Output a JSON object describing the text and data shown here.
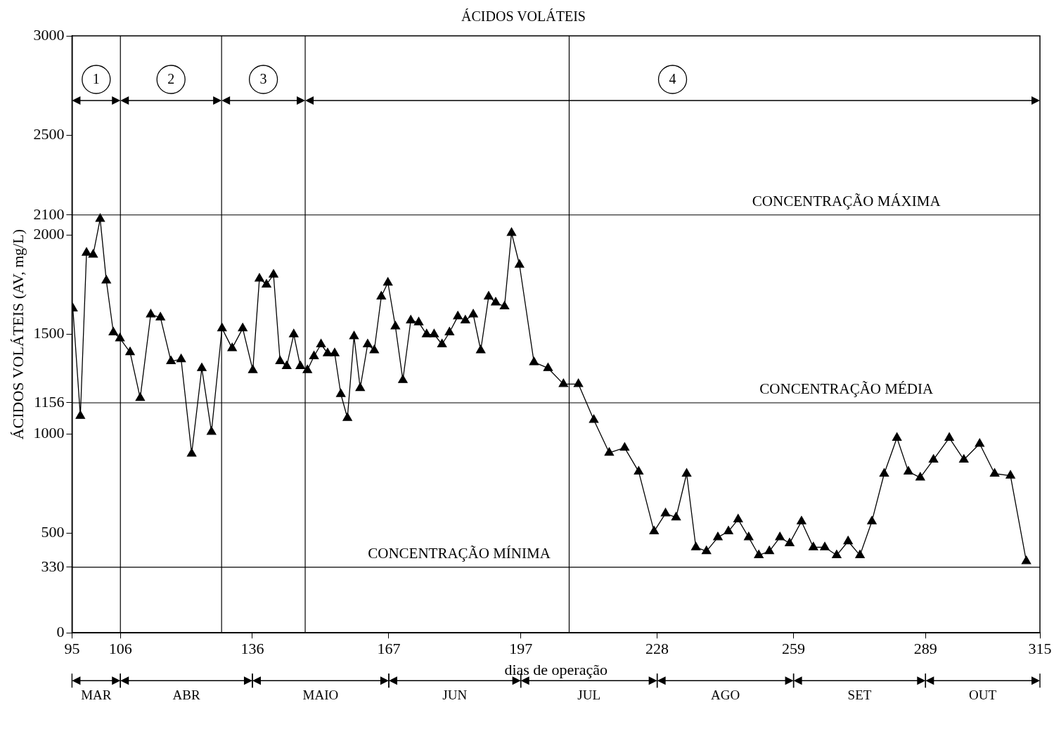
{
  "chart_data": {
    "type": "line",
    "title": "ÁCIDOS VOLÁTEIS",
    "xlabel": "dias de operação",
    "ylabel": "ÁCIDOS VOLÁTEIS (AV, mg/L)",
    "x": [
      95.2,
      96.9,
      98.3,
      99.8,
      101.4,
      102.8,
      104.4,
      105.9,
      108.2,
      110.5,
      112.9,
      115.1,
      117.5,
      119.8,
      122.2,
      124.5,
      126.7,
      129.1,
      131.4,
      133.8,
      136.1,
      137.6,
      139.2,
      140.8,
      142.3,
      143.8,
      145.4,
      146.9,
      148.5,
      150.0,
      151.6,
      153.1,
      154.7,
      156.1,
      157.6,
      159.1,
      160.5,
      162.2,
      163.7,
      165.3,
      166.8,
      168.5,
      170.2,
      172.0,
      173.8,
      175.6,
      177.3,
      179.1,
      180.8,
      182.7,
      184.4,
      186.2,
      187.9,
      189.7,
      191.3,
      193.3,
      194.9,
      196.7,
      200.0,
      203.2,
      206.7,
      210.1,
      213.6,
      217.1,
      220.6,
      223.8,
      227.3,
      229.9,
      232.3,
      234.7,
      236.8,
      239.2,
      241.8,
      244.2,
      246.4,
      248.8,
      251.1,
      253.5,
      255.9,
      258.1,
      260.8,
      263.5,
      266.1,
      268.8,
      271.4,
      274.1,
      276.8,
      279.6,
      282.5,
      285.1,
      287.8,
      290.8,
      294.4,
      297.7,
      301.3,
      304.7,
      308.3,
      311.9
    ],
    "series": [
      {
        "color": "#000000",
        "values": [
          1630,
          1090,
          1910,
          1900,
          2080,
          1770,
          1510,
          1480,
          1410,
          1180,
          1600,
          1585,
          1365,
          1375,
          900,
          1330,
          1010,
          1530,
          1430,
          1530,
          1320,
          1780,
          1750,
          1800,
          1365,
          1340,
          1500,
          1340,
          1320,
          1390,
          1450,
          1405,
          1405,
          1200,
          1080,
          1490,
          1230,
          1450,
          1420,
          1690,
          1760,
          1540,
          1270,
          1570,
          1560,
          1500,
          1500,
          1450,
          1510,
          1590,
          1570,
          1600,
          1420,
          1690,
          1660,
          1640,
          2010,
          1850,
          1360,
          1330,
          1250,
          1250,
          1070,
          905,
          930,
          810,
          510,
          600,
          580,
          800,
          430,
          410,
          480,
          510,
          570,
          480,
          390,
          410,
          480,
          450,
          560,
          430,
          430,
          390,
          460,
          390,
          560,
          800,
          980,
          810,
          780,
          870,
          980,
          870,
          950,
          800,
          790,
          360
        ]
      }
    ],
    "xlim": [
      95,
      315
    ],
    "xticks": [
      95,
      106,
      136,
      167,
      197,
      228,
      259,
      289,
      315
    ],
    "ylim": [
      0,
      3000
    ],
    "yticks": [
      0,
      330,
      500,
      1000,
      1156,
      1500,
      2000,
      2100,
      2500,
      3000
    ],
    "marker": "triangle",
    "line_style": "solid",
    "grid": false,
    "legend": false,
    "ref_lines": [
      {
        "axis": "y",
        "value": 2100,
        "label": "CONCENTRAÇÃO MÁXIMA"
      },
      {
        "axis": "y",
        "value": 1156,
        "label": "CONCENTRAÇÃO MÉDIA"
      },
      {
        "axis": "y",
        "value": 330,
        "label": "CONCENTRAÇÃO MÍNIMA"
      },
      {
        "axis": "x",
        "value": 106
      },
      {
        "axis": "x",
        "value": 129
      },
      {
        "axis": "x",
        "value": 148
      },
      {
        "axis": "x",
        "value": 208
      }
    ],
    "annotations": [
      "1",
      "2",
      "3",
      "4",
      "MAR",
      "ABR",
      "MAIO",
      "JUN",
      "JUL",
      "AGO",
      "SET",
      "OUT"
    ]
  }
}
